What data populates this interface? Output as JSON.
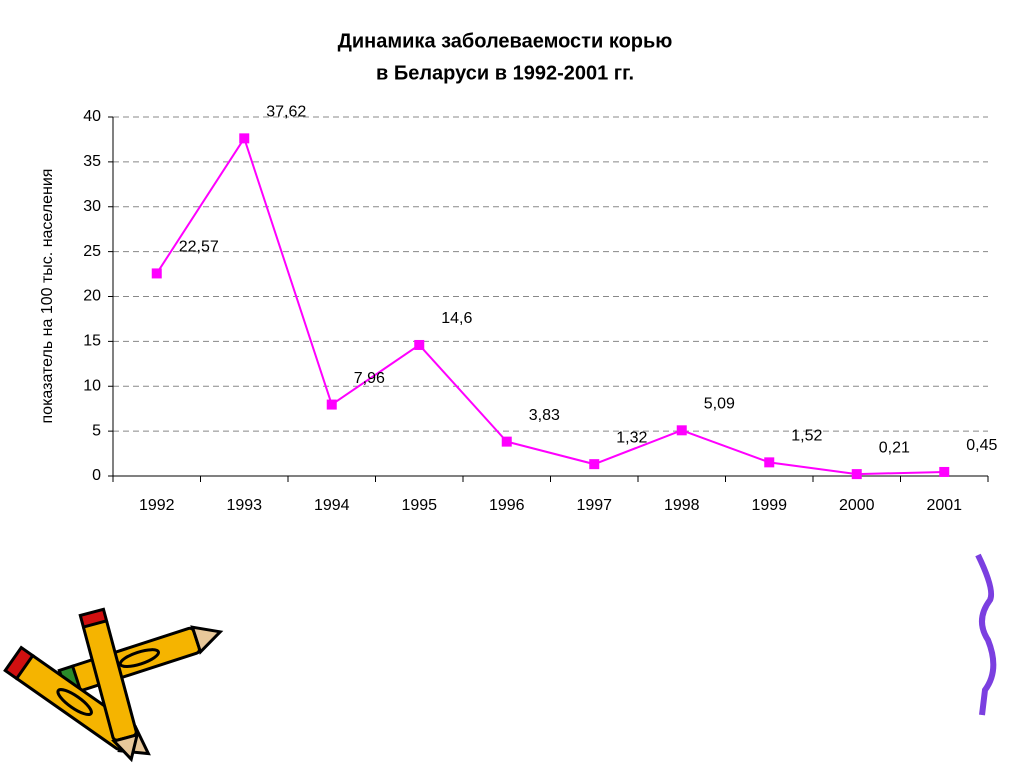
{
  "chart_data": {
    "type": "line",
    "title": "Динамика заболеваемости корью",
    "subtitle": "в Беларуси в 1992-2001 гг.",
    "y_label": "показатель на 100 тыс. населения",
    "categories": [
      "1992",
      "1993",
      "1994",
      "1995",
      "1996",
      "1997",
      "1998",
      "1999",
      "2000",
      "2001"
    ],
    "values": [
      22.57,
      37.62,
      7.96,
      14.6,
      3.83,
      1.32,
      5.09,
      1.52,
      0.21,
      0.45
    ],
    "value_labels": [
      "22,57",
      "37,62",
      "7,96",
      "14,6",
      "3,83",
      "1,32",
      "5,09",
      "1,52",
      "0,21",
      "0,45"
    ],
    "color": "#ff00ff",
    "ylim": [
      0,
      40
    ],
    "yticks": [
      0,
      5,
      10,
      15,
      20,
      25,
      30,
      35,
      40
    ],
    "grid": true
  }
}
